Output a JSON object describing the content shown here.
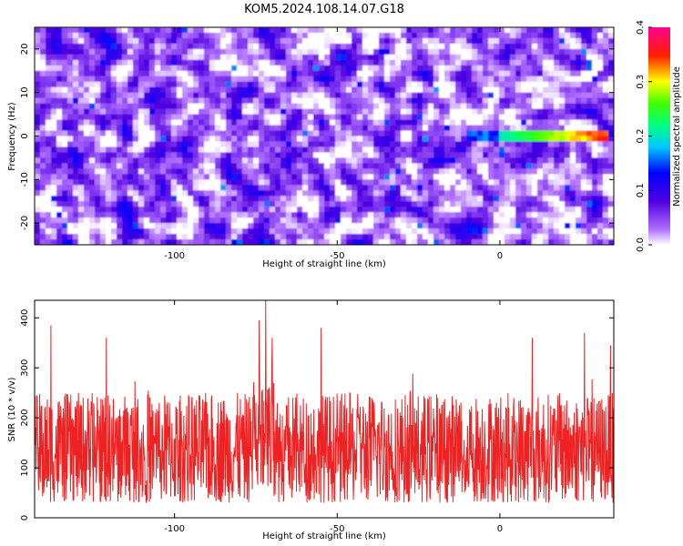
{
  "title": "KOM5.2024.108.14.07.G18",
  "colors": {
    "snr_line": "#ee2222",
    "background": "#ffffff",
    "colormap": [
      "#ffffff",
      "#8a2be2",
      "#0000ff",
      "#00e5ff",
      "#00ff00",
      "#ffff00",
      "#ff0000",
      "#ff00aa"
    ]
  },
  "chart_data": [
    {
      "type": "heatmap",
      "title": "KOM5.2024.108.14.07.G18",
      "xlabel": "Height of straight line (km)",
      "ylabel": "Frequency (Hz)",
      "xlim": [
        -143,
        35
      ],
      "ylim": [
        -25,
        25
      ],
      "x_ticks": [
        -100,
        -50,
        0
      ],
      "x_tick_labels": [
        "-100",
        "-50",
        "0"
      ],
      "y_ticks": [
        -20,
        -10,
        0,
        10,
        20
      ],
      "y_tick_labels": [
        "-20",
        "-10",
        "0",
        "10",
        "20"
      ],
      "grid": false,
      "features": [
        {
          "name": "",
          "description": "high-amplitude ridge at 0 Hz",
          "x_range": [
            0,
            33
          ],
          "frequency": 0,
          "peak_amplitude": 0.38
        }
      ],
      "colorbar": {
        "label": "Normalized spectral amplitude",
        "range": [
          0.0,
          0.4
        ],
        "ticks": [
          0.0,
          0.1,
          0.2,
          0.3,
          0.4
        ],
        "tick_labels": [
          "0.0",
          "0.1",
          "0.2",
          "0.3",
          "0.4"
        ],
        "scale": "rainbow"
      }
    },
    {
      "type": "line",
      "xlabel": "Height of straight line (km)",
      "ylabel": "SNR (10 * v/v)",
      "xlim": [
        -143,
        35
      ],
      "ylim": [
        0,
        435
      ],
      "x_ticks": [
        -100,
        -50,
        0
      ],
      "x_tick_labels": [
        "-100",
        "-50",
        "0"
      ],
      "y_ticks": [
        0,
        100,
        200,
        300,
        400
      ],
      "y_tick_labels": [
        "0",
        "100",
        "200",
        "300",
        "400"
      ],
      "grid": false,
      "series": [
        {
          "name": "",
          "color": "#ee2222",
          "typical_range": [
            30,
            250
          ],
          "mean": 120,
          "notable_peaks": [
            {
              "x": -138,
              "y": 385
            },
            {
              "x": -121,
              "y": 360
            },
            {
              "x": -74,
              "y": 395
            },
            {
              "x": -72,
              "y": 435
            },
            {
              "x": -70,
              "y": 360
            },
            {
              "x": -55,
              "y": 380
            },
            {
              "x": 10,
              "y": 360
            },
            {
              "x": 26,
              "y": 370
            },
            {
              "x": 34,
              "y": 345
            }
          ]
        }
      ]
    }
  ]
}
